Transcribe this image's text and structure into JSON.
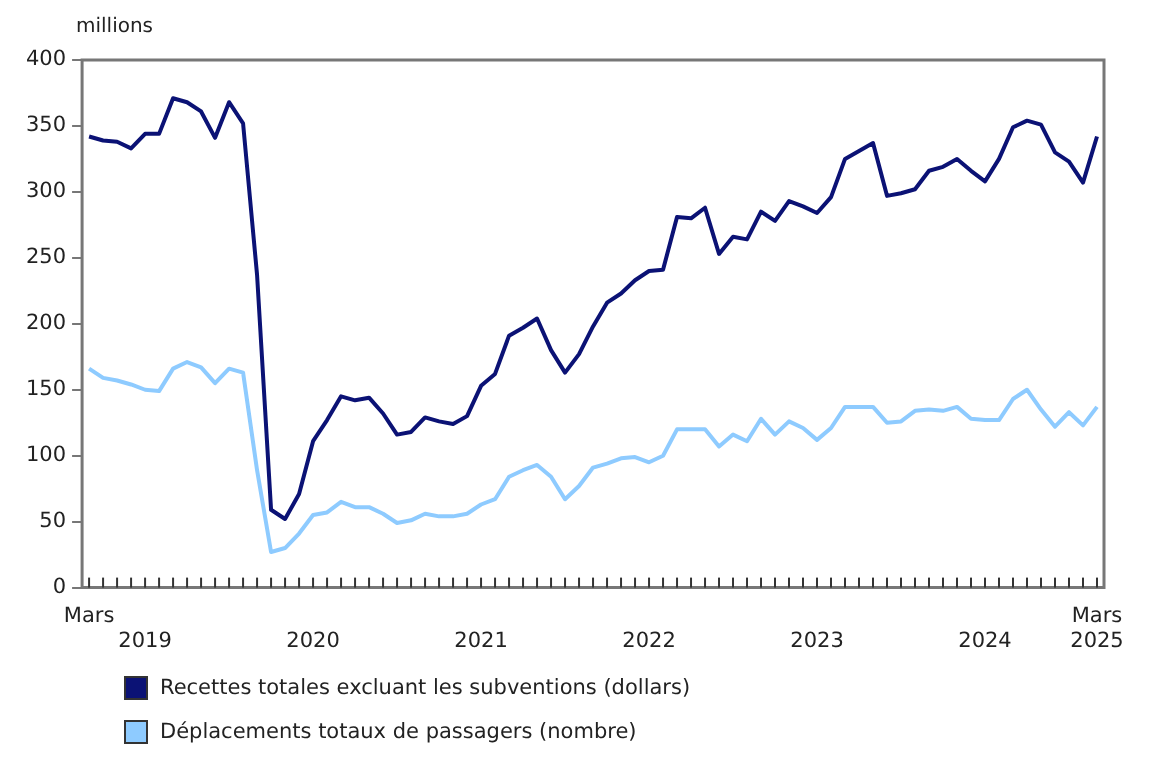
{
  "chart_data": {
    "type": "line",
    "ylabel": "millions",
    "categories": [
      "Mars",
      null,
      null,
      null,
      "\n2019",
      null,
      null,
      null,
      null,
      null,
      null,
      null,
      null,
      null,
      null,
      null,
      "\n2020",
      null,
      null,
      null,
      null,
      null,
      null,
      null,
      null,
      null,
      null,
      null,
      "\n2021",
      null,
      null,
      null,
      null,
      null,
      null,
      null,
      null,
      null,
      null,
      null,
      "\n2022",
      null,
      null,
      null,
      null,
      null,
      null,
      null,
      null,
      null,
      null,
      null,
      "\n2023",
      null,
      null,
      null,
      null,
      null,
      null,
      null,
      null,
      null,
      null,
      null,
      "\n2024",
      null,
      null,
      null,
      null,
      null,
      null,
      null,
      "Mars\n2025"
    ],
    "series": [
      {
        "name": "Recettes totales excluant les subventions (dollars)",
        "color": "#0b1275",
        "values": [
          342,
          339,
          338,
          333,
          344,
          344,
          371,
          368,
          361,
          341,
          368,
          352,
          237,
          59,
          52,
          71,
          111,
          127,
          145,
          142,
          144,
          132,
          116,
          118,
          129,
          126,
          124,
          130,
          153,
          162,
          191,
          197,
          204,
          180,
          163,
          177,
          198,
          216,
          223,
          233,
          240,
          241,
          281,
          280,
          288,
          253,
          266,
          264,
          285,
          278,
          293,
          289,
          284,
          296,
          325,
          331,
          337,
          297,
          299,
          302,
          316,
          319,
          325,
          316,
          308,
          325,
          349,
          354,
          351,
          330,
          323,
          307,
          342
        ]
      },
      {
        "name": "Déplacements totaux de passagers (nombre)",
        "color": "#8ecbff",
        "values": [
          166,
          159,
          157,
          154,
          150,
          149,
          166,
          171,
          167,
          155,
          166,
          163,
          89,
          27,
          30,
          41,
          55,
          57,
          65,
          61,
          61,
          56,
          49,
          51,
          56,
          54,
          54,
          56,
          63,
          67,
          84,
          89,
          93,
          84,
          67,
          77,
          91,
          94,
          98,
          99,
          95,
          100,
          120,
          120,
          120,
          107,
          116,
          111,
          128,
          116,
          126,
          121,
          112,
          121,
          137,
          137,
          137,
          125,
          126,
          134,
          135,
          134,
          137,
          128,
          127,
          127,
          143,
          150,
          135,
          122,
          133,
          123,
          137
        ]
      }
    ],
    "ylim": [
      0,
      400
    ],
    "yticks": [
      0,
      50,
      100,
      150,
      200,
      250,
      300,
      350,
      400
    ],
    "legend": "bottom"
  }
}
